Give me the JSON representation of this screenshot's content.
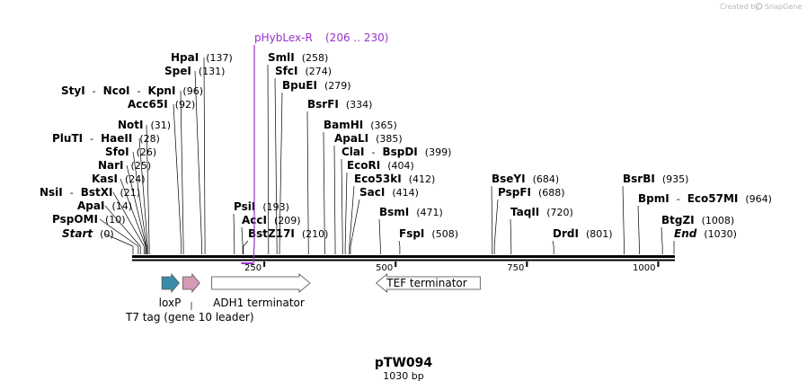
{
  "title": "pTW094",
  "subtitle": "1030 bp",
  "brand": {
    "created_by": "Created by",
    "product": "SnapGene"
  },
  "colors": {
    "primer": "#9a32cd",
    "loxp": "#3a8ca8",
    "t7tag": "#d49ab6",
    "backbone": "#000000"
  },
  "map": {
    "length": 1030
  },
  "ticks": [
    {
      "pos": 250,
      "label": "250"
    },
    {
      "pos": 500,
      "label": "500"
    },
    {
      "pos": 750,
      "label": "750"
    },
    {
      "pos": 1000,
      "label": "1000"
    }
  ],
  "sites": [
    {
      "parts": [
        "Start"
      ],
      "pos": 0,
      "label": "(0)",
      "italic": true
    },
    {
      "parts": [
        "PspOMI"
      ],
      "pos": 10,
      "label": "(10)"
    },
    {
      "parts": [
        "ApaI"
      ],
      "pos": 14,
      "label": "(14)"
    },
    {
      "parts": [
        "NsiI",
        "BstXI"
      ],
      "pos": 21,
      "label": "(21)"
    },
    {
      "parts": [
        "KasI"
      ],
      "pos": 24,
      "label": "(24)"
    },
    {
      "parts": [
        "NarI"
      ],
      "pos": 25,
      "label": "(25)"
    },
    {
      "parts": [
        "SfoI"
      ],
      "pos": 26,
      "label": "(26)"
    },
    {
      "parts": [
        "PluTI",
        "HaeII"
      ],
      "pos": 28,
      "label": "(28)"
    },
    {
      "parts": [
        "NotI"
      ],
      "pos": 31,
      "label": "(31)"
    },
    {
      "parts": [
        "Acc65I"
      ],
      "pos": 92,
      "label": "(92)"
    },
    {
      "parts": [
        "StyI",
        "NcoI",
        "KpnI"
      ],
      "pos": 96,
      "label": "(96)"
    },
    {
      "parts": [
        "SpeI"
      ],
      "pos": 131,
      "label": "(131)"
    },
    {
      "parts": [
        "HpaI"
      ],
      "pos": 137,
      "label": "(137)"
    },
    {
      "parts": [
        "PsiI"
      ],
      "pos": 193,
      "label": "(193)"
    },
    {
      "parts": [
        "AccI"
      ],
      "pos": 209,
      "label": "(209)"
    },
    {
      "parts": [
        "BstZ17I"
      ],
      "pos": 210,
      "label": "(210)"
    },
    {
      "parts": [
        "SmlI"
      ],
      "pos": 258,
      "label": "(258)"
    },
    {
      "parts": [
        "SfcI"
      ],
      "pos": 274,
      "label": "(274)"
    },
    {
      "parts": [
        "BpuEI"
      ],
      "pos": 279,
      "label": "(279)"
    },
    {
      "parts": [
        "BsrFI"
      ],
      "pos": 334,
      "label": "(334)"
    },
    {
      "parts": [
        "BamHI"
      ],
      "pos": 365,
      "label": "(365)"
    },
    {
      "parts": [
        "ApaLI"
      ],
      "pos": 385,
      "label": "(385)"
    },
    {
      "parts": [
        "ClaI",
        "BspDI"
      ],
      "pos": 399,
      "label": "(399)"
    },
    {
      "parts": [
        "EcoRI"
      ],
      "pos": 404,
      "label": "(404)"
    },
    {
      "parts": [
        "Eco53kI"
      ],
      "pos": 412,
      "label": "(412)"
    },
    {
      "parts": [
        "SacI"
      ],
      "pos": 414,
      "label": "(414)"
    },
    {
      "parts": [
        "BsmI"
      ],
      "pos": 471,
      "label": "(471)"
    },
    {
      "parts": [
        "FspI"
      ],
      "pos": 508,
      "label": "(508)"
    },
    {
      "parts": [
        "BseYI"
      ],
      "pos": 684,
      "label": "(684)"
    },
    {
      "parts": [
        "PspFI"
      ],
      "pos": 688,
      "label": "(688)"
    },
    {
      "parts": [
        "TaqII"
      ],
      "pos": 720,
      "label": "(720)"
    },
    {
      "parts": [
        "DrdI"
      ],
      "pos": 801,
      "label": "(801)"
    },
    {
      "parts": [
        "BsrBI"
      ],
      "pos": 935,
      "label": "(935)"
    },
    {
      "parts": [
        "BpmI",
        "Eco57MI"
      ],
      "pos": 964,
      "label": "(964)"
    },
    {
      "parts": [
        "BtgZI"
      ],
      "pos": 1008,
      "label": "(1008)"
    },
    {
      "parts": [
        "End"
      ],
      "pos": 1030,
      "label": "(1030)",
      "italic": true
    }
  ],
  "primer": {
    "name": "pHybLex-R",
    "range": "(206 .. 230)",
    "start": 206,
    "end": 230
  },
  "features": [
    {
      "name": "loxP",
      "start": 55,
      "end": 88,
      "direction": "forward",
      "color": "#3a8ca8"
    },
    {
      "name": "T7 tag (gene 10 leader)",
      "start": 95,
      "end": 127,
      "direction": "forward",
      "color": "#d49ab6"
    },
    {
      "name": "ADH1 terminator",
      "start": 150,
      "end": 337,
      "direction": "forward",
      "color": "#ffffff"
    },
    {
      "name": "TEF terminator",
      "start": 463,
      "end": 661,
      "direction": "reverse",
      "color": "#ffffff"
    }
  ]
}
